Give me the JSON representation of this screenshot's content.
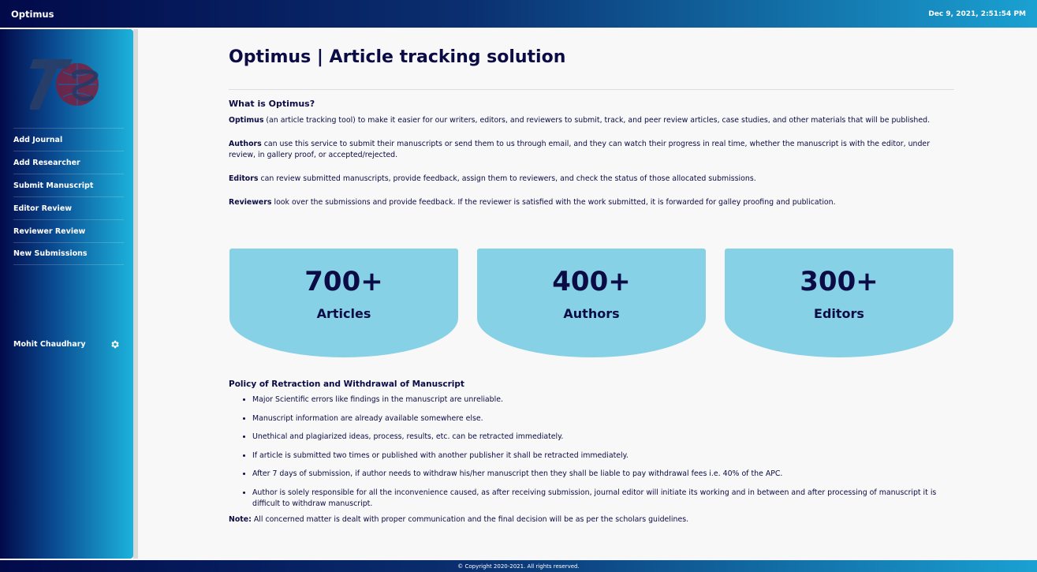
{
  "header": {
    "brand": "Optimus",
    "datetime": "Dec 9, 2021, 2:51:54 PM"
  },
  "sidebar": {
    "logo_icon": "ts-globe-logo",
    "items": [
      {
        "label": "Add Journal"
      },
      {
        "label": "Add Researcher"
      },
      {
        "label": "Submit Manuscript"
      },
      {
        "label": "Editor Review"
      },
      {
        "label": "Reviewer Review"
      },
      {
        "label": "New Submissions"
      }
    ],
    "user": {
      "name": "Mohit Chaudhary",
      "icon": "gear-icon"
    }
  },
  "main": {
    "title": "Optimus | Article tracking solution",
    "about_heading": "What is Optimus?",
    "paragraphs": [
      {
        "lead": "Optimus",
        "text": " (an article tracking tool) to make it easier for our writers, editors, and reviewers to submit, track, and peer review articles, case studies, and other materials that will be published."
      },
      {
        "lead": "Authors",
        "text": " can use this service to submit their manuscripts or send them to us through email, and they can watch their progress in real time, whether the manuscript is with the editor, under review, in gallery proof, or accepted/rejected."
      },
      {
        "lead": "Editors",
        "text": " can review submitted manuscripts, provide feedback, assign them to reviewers, and check the status of those allocated submissions."
      },
      {
        "lead": "Reviewers",
        "text": " look over the submissions and provide feedback. If the reviewer is satisfied with the work submitted, it is forwarded for galley proofing and publication."
      }
    ],
    "stats": [
      {
        "value": "700+",
        "label": "Articles"
      },
      {
        "value": "400+",
        "label": "Authors"
      },
      {
        "value": "300+",
        "label": "Editors"
      }
    ],
    "policy_heading": "Policy of Retraction and Withdrawal of Manuscript",
    "policy_items": [
      "Major Scientific errors like findings in the manuscript are unreliable.",
      "Manuscript information are already available somewhere else.",
      "Unethical and plagiarized ideas, process, results, etc. can be retracted immediately.",
      "If article is submitted two times or published with another publisher it shall be retracted immediately.",
      "After 7 days of submission, if author needs to withdraw his/her manuscript then they shall be liable to pay withdrawal fees i.e. 40% of the APC.",
      "Author is solely responsible for all the inconvenience caused, as after receiving submission, journal editor will initiate its working and in between and after processing of manuscript it is difficult to withdraw manuscript."
    ],
    "note_lead": "Note:",
    "note_text": " All concerned matter is dealt with proper communication and the final decision will be as per the scholars guidelines."
  },
  "footer": {
    "text": "© Copyright 2020-2021. All rights reserved."
  },
  "colors": {
    "accent": "#1aa1d2",
    "navy": "#0b0b45",
    "stat_card": "#87d1e6"
  }
}
